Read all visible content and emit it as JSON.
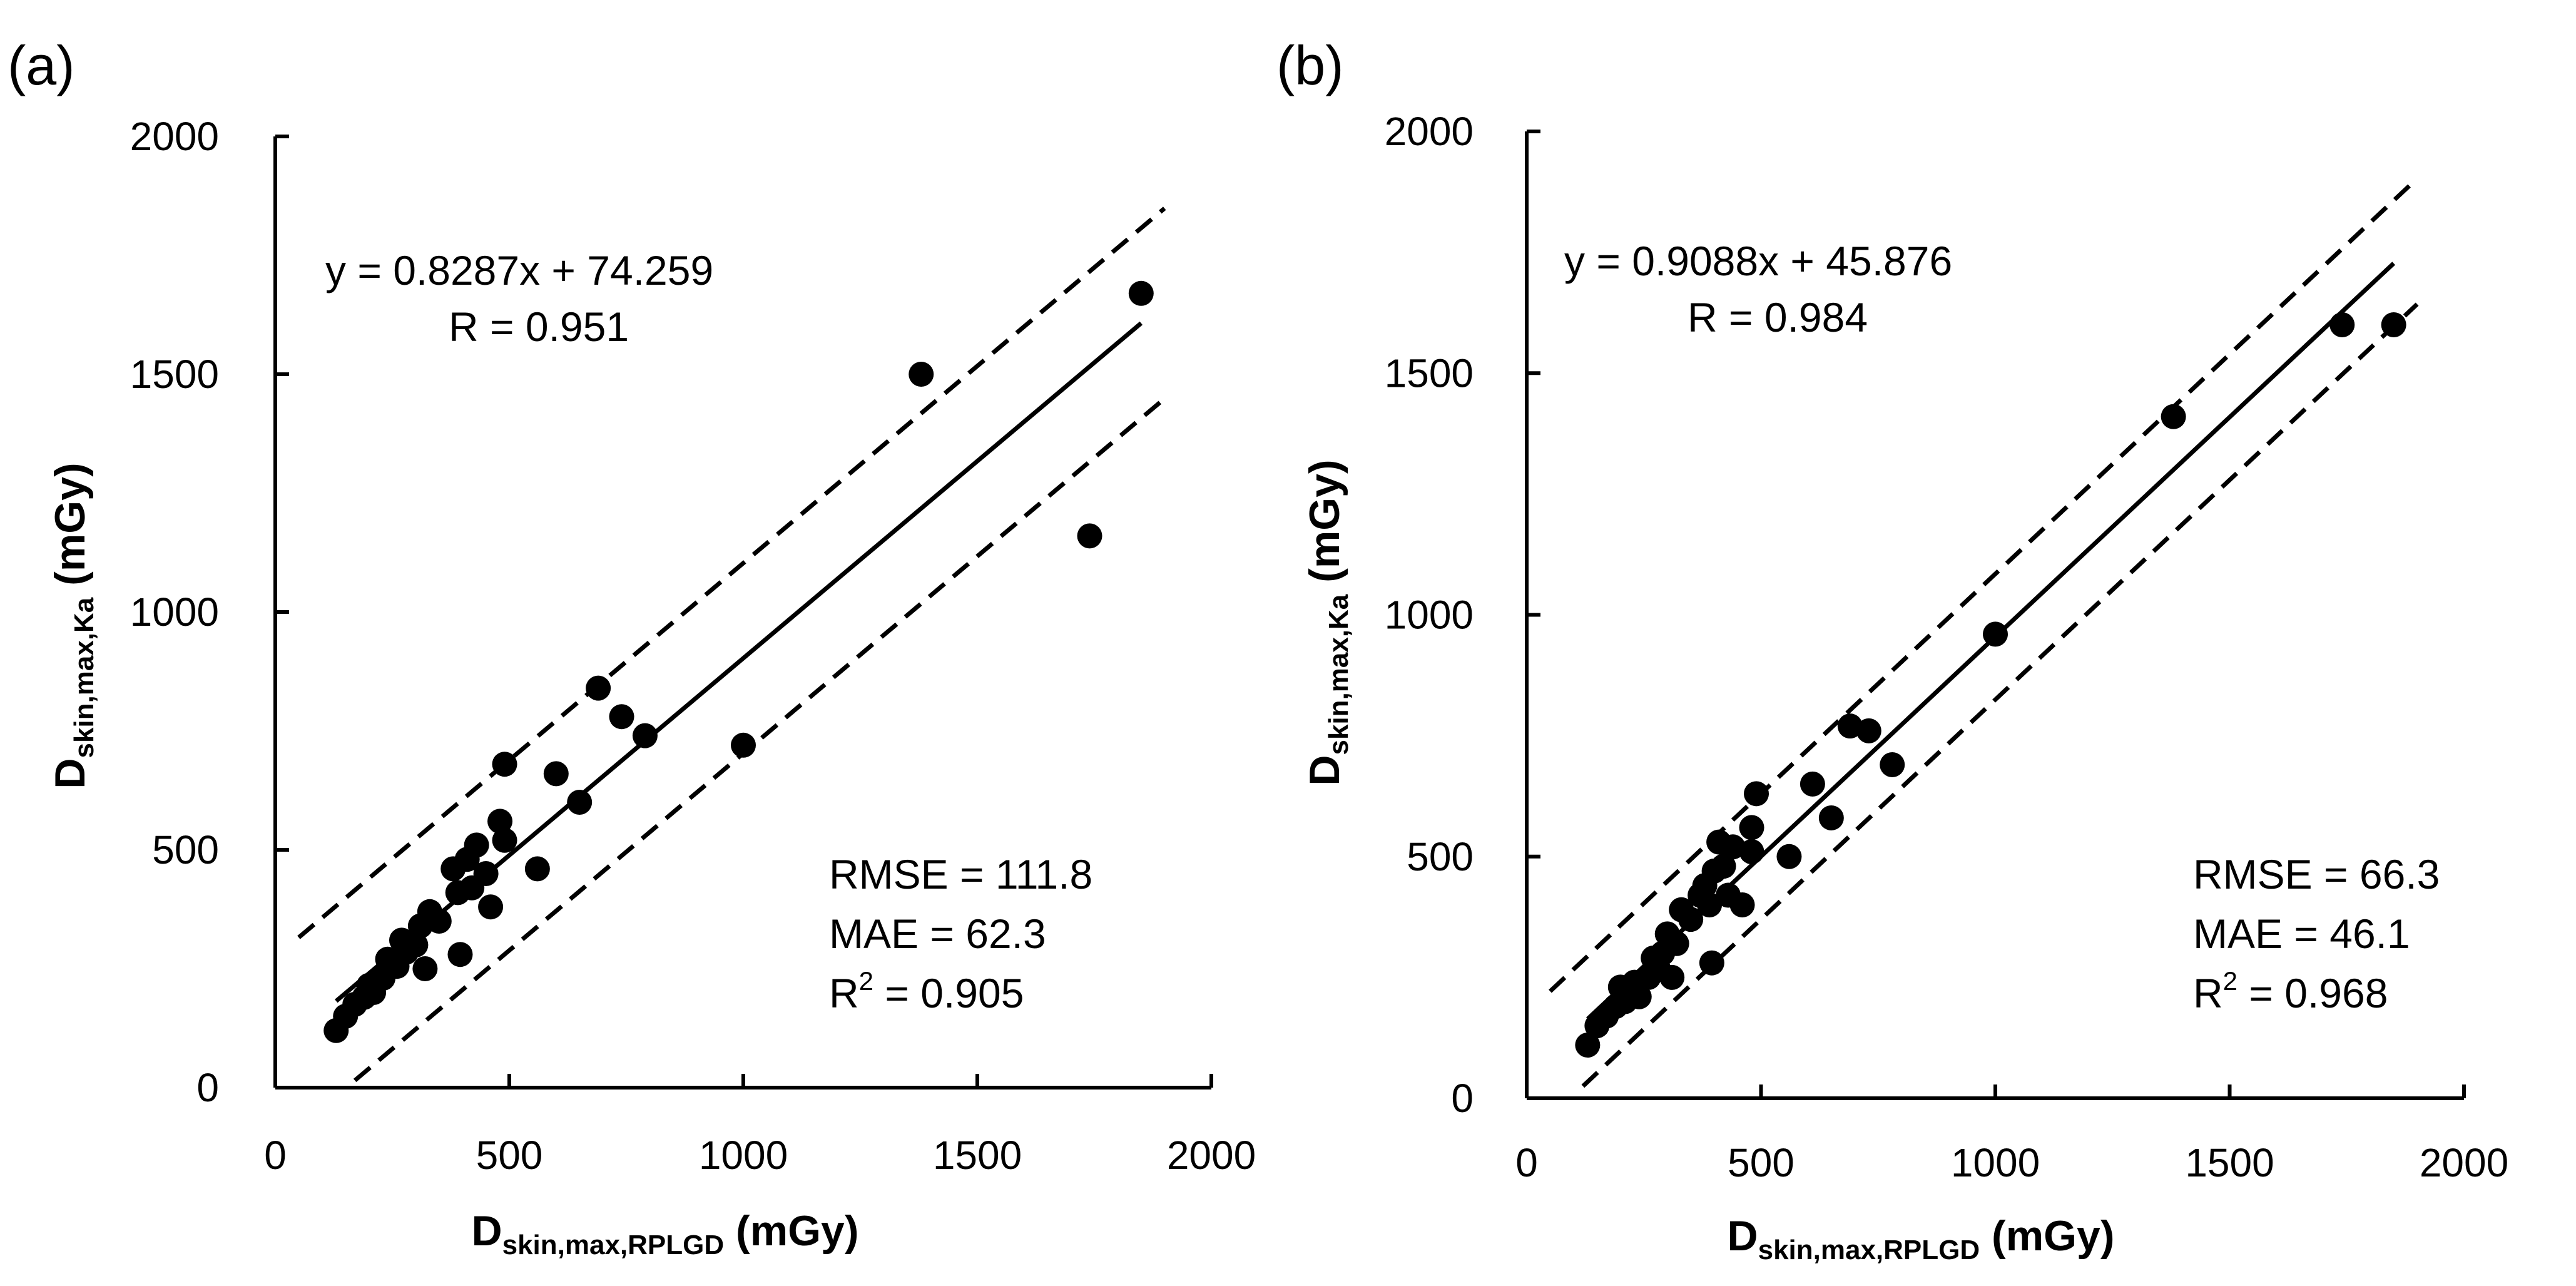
{
  "chart_data": [
    {
      "panel": "(a)",
      "type": "scatter",
      "xlabel": {
        "main": "D",
        "sub": "skin,max,RPLGD",
        "unit": " (mGy)"
      },
      "ylabel": {
        "main": "D",
        "sub": "skin,max,Ka",
        "unit": " (mGy)"
      },
      "xlim": [
        0,
        2000
      ],
      "ylim": [
        0,
        2000
      ],
      "xticks": [
        "0",
        "500",
        "1000",
        "1500",
        "2000"
      ],
      "yticks": [
        "0",
        "500",
        "1000",
        "1500",
        "2000"
      ],
      "equation": "y = 0.8287x + 74.259",
      "r_text": "R = 0.951",
      "stats": {
        "rmse": "RMSE = 111.8",
        "mae": "MAE = 62.3",
        "r2_prefix": "R",
        "r2_sup": "2",
        "r2_value": " = 0.905"
      },
      "fit": {
        "slope": 0.8287,
        "intercept": 74.259,
        "x_range": [
          130,
          1850
        ]
      },
      "bands": [
        {
          "name": "upper",
          "intercept": 274.259,
          "x_range": [
            50,
            1900
          ]
        },
        {
          "name": "lower",
          "intercept": -125.741,
          "x_range": [
            170,
            1900
          ]
        }
      ],
      "points": [
        [
          130,
          120
        ],
        [
          150,
          150
        ],
        [
          170,
          175
        ],
        [
          190,
          190
        ],
        [
          200,
          215
        ],
        [
          210,
          200
        ],
        [
          230,
          230
        ],
        [
          240,
          270
        ],
        [
          260,
          255
        ],
        [
          270,
          310
        ],
        [
          280,
          285
        ],
        [
          300,
          300
        ],
        [
          310,
          340
        ],
        [
          320,
          250
        ],
        [
          330,
          370
        ],
        [
          350,
          350
        ],
        [
          380,
          460
        ],
        [
          390,
          410
        ],
        [
          395,
          280
        ],
        [
          410,
          480
        ],
        [
          420,
          420
        ],
        [
          430,
          510
        ],
        [
          450,
          450
        ],
        [
          460,
          380
        ],
        [
          480,
          560
        ],
        [
          490,
          520
        ],
        [
          490,
          680
        ],
        [
          560,
          460
        ],
        [
          600,
          660
        ],
        [
          650,
          600
        ],
        [
          690,
          840
        ],
        [
          740,
          780
        ],
        [
          790,
          740
        ],
        [
          1000,
          720
        ],
        [
          1380,
          1500
        ],
        [
          1740,
          1160
        ],
        [
          1850,
          1670
        ]
      ]
    },
    {
      "panel": "(b)",
      "type": "scatter",
      "xlabel": {
        "main": "D",
        "sub": "skin,max,RPLGD",
        "unit": " (mGy)"
      },
      "ylabel": {
        "main": "D",
        "sub": "skin,max,Ka",
        "unit": " (mGy)"
      },
      "xlim": [
        0,
        2000
      ],
      "ylim": [
        0,
        2000
      ],
      "xticks": [
        "0",
        "500",
        "1000",
        "1500",
        "2000"
      ],
      "yticks": [
        "0",
        "500",
        "1000",
        "1500",
        "2000"
      ],
      "equation": "y = 0.9088x + 45.876",
      "r_text": "R = 0.984",
      "stats": {
        "rmse": "RMSE = 66.3",
        "mae": "MAE = 46.1",
        "r2_prefix": "R",
        "r2_sup": "2",
        "r2_value": " = 0.968"
      },
      "fit": {
        "slope": 0.9088,
        "intercept": 45.876,
        "x_range": [
          130,
          1850
        ]
      },
      "bands": [
        {
          "name": "upper",
          "intercept": 175.876,
          "x_range": [
            50,
            1900
          ]
        },
        {
          "name": "lower",
          "intercept": -84.124,
          "x_range": [
            120,
            1900
          ]
        }
      ],
      "points": [
        [
          130,
          110
        ],
        [
          150,
          150
        ],
        [
          170,
          170
        ],
        [
          190,
          190
        ],
        [
          200,
          230
        ],
        [
          210,
          200
        ],
        [
          230,
          240
        ],
        [
          240,
          210
        ],
        [
          260,
          250
        ],
        [
          270,
          290
        ],
        [
          280,
          270
        ],
        [
          290,
          300
        ],
        [
          300,
          340
        ],
        [
          310,
          250
        ],
        [
          320,
          320
        ],
        [
          330,
          390
        ],
        [
          350,
          370
        ],
        [
          370,
          420
        ],
        [
          380,
          440
        ],
        [
          390,
          400
        ],
        [
          395,
          280
        ],
        [
          400,
          470
        ],
        [
          410,
          530
        ],
        [
          420,
          480
        ],
        [
          430,
          420
        ],
        [
          440,
          520
        ],
        [
          460,
          400
        ],
        [
          480,
          560
        ],
        [
          480,
          510
        ],
        [
          490,
          630
        ],
        [
          560,
          500
        ],
        [
          610,
          650
        ],
        [
          650,
          580
        ],
        [
          690,
          770
        ],
        [
          730,
          760
        ],
        [
          780,
          690
        ],
        [
          1000,
          960
        ],
        [
          1380,
          1410
        ],
        [
          1740,
          1600
        ],
        [
          1850,
          1600
        ]
      ]
    }
  ]
}
